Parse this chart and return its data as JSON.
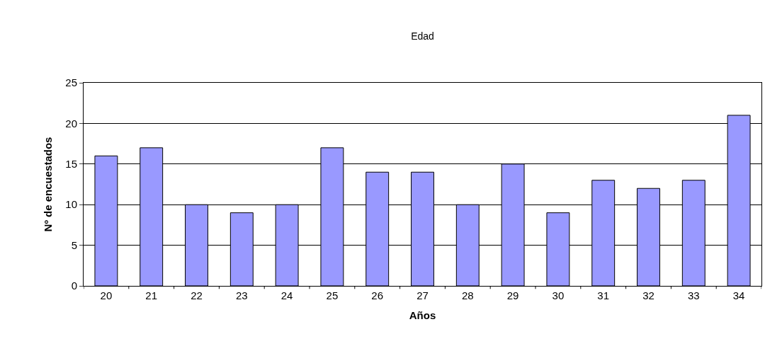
{
  "chart_data": {
    "type": "bar",
    "title": "Edad",
    "xlabel": "Años",
    "ylabel": "Nº de encuestados",
    "categories": [
      "20",
      "21",
      "22",
      "23",
      "24",
      "25",
      "26",
      "27",
      "28",
      "29",
      "30",
      "31",
      "32",
      "33",
      "34"
    ],
    "values": [
      16,
      17,
      10,
      9,
      10,
      17,
      14,
      14,
      10,
      15,
      9,
      13,
      12,
      13,
      21
    ],
    "color": "#9999ff",
    "ylim": [
      0,
      25
    ],
    "yticks": [
      0,
      5,
      10,
      15,
      20,
      25
    ],
    "grid": "y"
  }
}
